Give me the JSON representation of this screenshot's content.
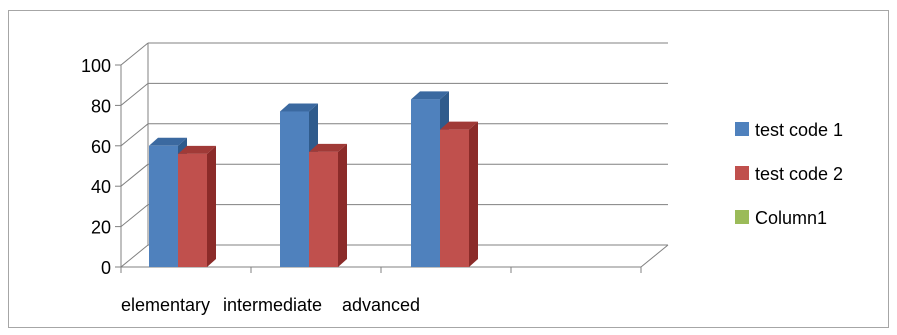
{
  "chart_data": {
    "type": "bar",
    "style": "3d-clustered-column",
    "categories": [
      "elementary",
      "intermediate",
      "advanced",
      ""
    ],
    "series": [
      {
        "name": "test code 1",
        "values": [
          60,
          77,
          83,
          null
        ],
        "color": "#4F81BD",
        "side_color": "#2F5B8C",
        "top_color": "#3B69A0"
      },
      {
        "name": "test code 2",
        "values": [
          56,
          57,
          68,
          null
        ],
        "color": "#C0504D",
        "side_color": "#8B2B29",
        "top_color": "#A03A37"
      },
      {
        "name": "Column1",
        "values": [
          null,
          null,
          null,
          null
        ],
        "color": "#9BBB59"
      }
    ],
    "ylim": [
      0,
      100
    ],
    "yticks": [
      "0",
      "20",
      "40",
      "60",
      "80",
      "100"
    ],
    "grid": true,
    "legend_position": "right",
    "title": "",
    "xlabel": "",
    "ylabel": ""
  }
}
